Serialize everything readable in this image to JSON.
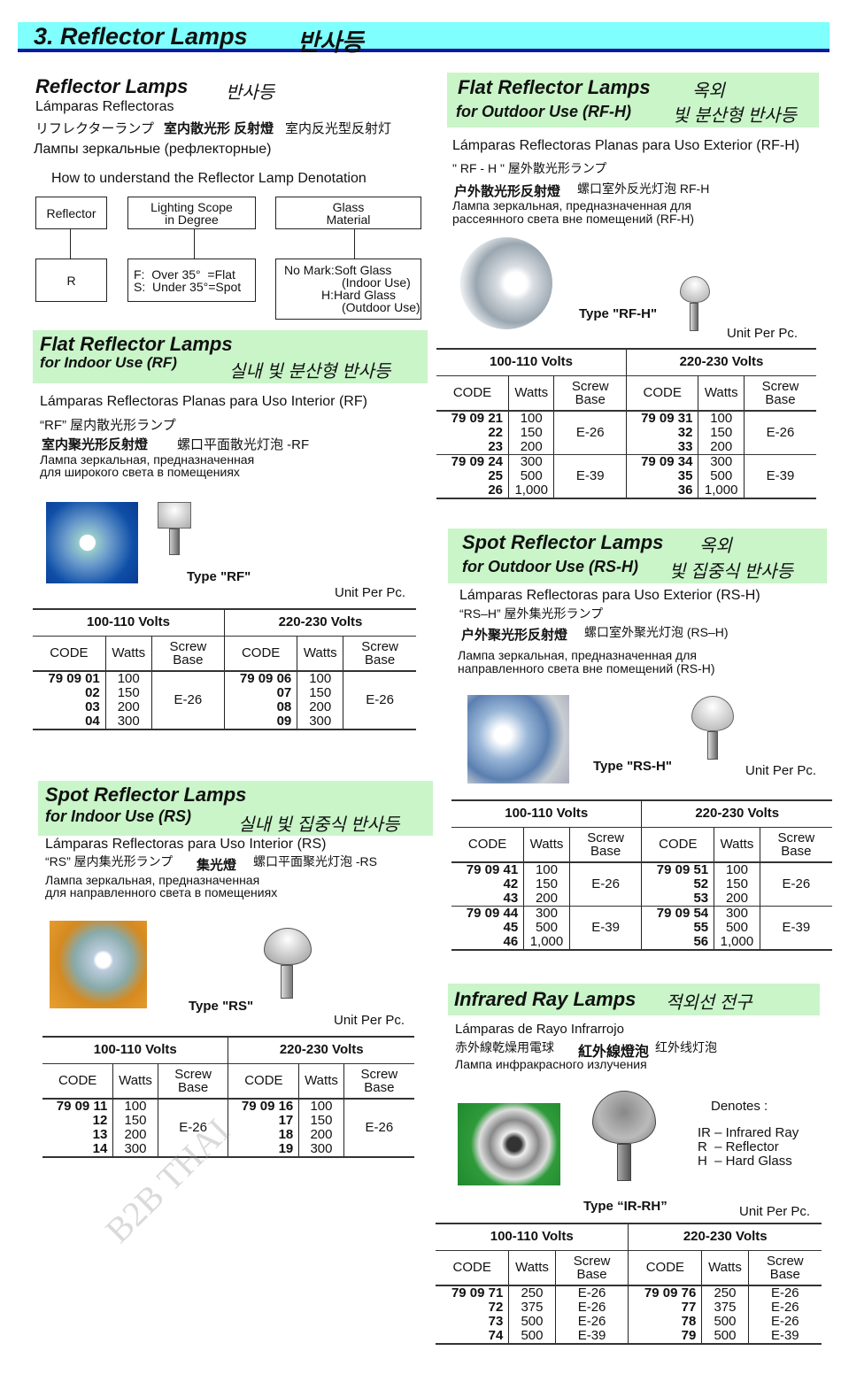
{
  "header": {
    "title": "3. Reflector Lamps",
    "title_kr": "반사등"
  },
  "intro": {
    "title": "Reflector Lamps",
    "title_kr": "반사등",
    "es": "Lámparas Reflectoras",
    "jp": "リフレクターランプ",
    "zh_bold": "室内散光形 反射燈",
    "zh": "室内反光型反射灯",
    "ru": "Лампы зеркальные (рефлекторные)",
    "denotation_title": "How to understand the Reflector Lamp Denotation",
    "boxes": {
      "reflector": "Reflector",
      "scope_1": "Lighting Scope",
      "scope_2": "in Degree",
      "glass_1": "Glass",
      "glass_2": "Material",
      "r": "R",
      "f": "F:  Over 35°  =Flat",
      "s": "S:  Under 35°=Spot",
      "nomark": "No Mark:Soft Glass",
      "indoor": "(Indoor Use)",
      "hard": "H:Hard Glass",
      "outdoor": "(Outdoor Use)"
    }
  },
  "rf": {
    "title_1": "Flat Reflector Lamps",
    "title_2": "for Indoor Use (RF)",
    "kr": "실내 빛 분산형 반사등",
    "es": "Lámparas Reflectoras  Planas para Uso Interior (RF)",
    "jp": "“RF” 屋内散光形ランプ",
    "zh_bold": "室内聚光形反射燈",
    "zh": "螺口平面散光灯泡 -RF",
    "ru_1": "Лампа зеркальная, предназначенная",
    "ru_2": "для широкого света в помещениях",
    "type": "Type \"RF\"",
    "unit": "Unit Per Pc."
  },
  "rs": {
    "title_1": "Spot Reflector Lamps",
    "title_2": "for Indoor Use (RS)",
    "kr": "실내 빛 집중식 반사등",
    "es": "Lámparas Reflectoras para Uso Interior (RS)",
    "jp": "“RS” 屋内集光形ランプ",
    "zh_bold": "集光燈",
    "zh": "螺口平面聚光灯泡 -RS",
    "ru_1": "Лампа зеркальная, предназначенная",
    "ru_2": "для направленного света в помещениях",
    "type": "Type \"RS\"",
    "unit": "Unit Per Pc."
  },
  "rfh": {
    "title_1": "Flat Reflector Lamps",
    "kr_1": "옥외",
    "title_2": "for Outdoor Use (RF-H)",
    "kr_2": "빛 분산형 반사등",
    "es": "Lámparas Reflectoras Planas para Uso Exterior (RF-H)",
    "jp": "\"  RF - H  \" 屋外散光形ランプ",
    "zh_bold": "户外散光形反射燈",
    "zh": "螺口室外反光灯泡 RF-H",
    "ru_1": "Лампа зеркальная, предназначенная для",
    "ru_2": "рассеянного света вне помещений (RF-H)",
    "type": "Type \"RF-H\"",
    "unit": "Unit Per Pc."
  },
  "rsh": {
    "title_1": "Spot Reflector Lamps",
    "kr_1": "옥외",
    "title_2": "for Outdoor Use (RS-H)",
    "kr_2": "빛 집중식 반사등",
    "es": "Lámparas Reflectoras para Uso Exterior (RS-H)",
    "jp": "“RS–H” 屋外集光形ランプ",
    "zh_bold": "户外聚光形反射燈",
    "zh": "螺口室外聚光灯泡 (RS–H)",
    "ru_1": "Лампа зеркальная, предназначенная для",
    "ru_2": "направленного света вне помещений (RS-H)",
    "type": "Type \"RS-H\"",
    "unit": "Unit Per Pc."
  },
  "ir": {
    "title": "Infrared Ray Lamps",
    "kr": "적외선 전구",
    "es": "Lámparas de Rayo Infrarrojo",
    "jp": "赤外線乾燥用電球",
    "zh_bold": "紅外線燈泡",
    "zh": "红外线灯泡",
    "ru": "Лампа инфракрасного излучения",
    "denotes": "Denotes :",
    "d1": "IR – Infrared Ray",
    "d2": "R  – Reflector",
    "d3": "H  – Hard Glass",
    "type": "Type “IR-RH”",
    "unit": "Unit Per Pc."
  },
  "tables": {
    "rfh": {
      "volts": [
        "100-110 Volts",
        "220-230 Volts"
      ],
      "cols": [
        "CODE",
        "Watts",
        "Screw|Base"
      ],
      "sides": [
        [
          {
            "codes": [
              "79 09 21",
              "22",
              "23"
            ],
            "watts": [
              "100",
              "150",
              "200"
            ],
            "base": [
              "E-26"
            ]
          },
          {
            "codes": [
              "79 09 24",
              "25",
              "26"
            ],
            "watts": [
              "300",
              "500",
              "1,000"
            ],
            "base": [
              "E-39"
            ]
          }
        ],
        [
          {
            "codes": [
              "79 09 31",
              "32",
              "33"
            ],
            "watts": [
              "100",
              "150",
              "200"
            ],
            "base": [
              "E-26"
            ]
          },
          {
            "codes": [
              "79 09 34",
              "35",
              "36"
            ],
            "watts": [
              "300",
              "500",
              "1,000"
            ],
            "base": [
              "E-39"
            ]
          }
        ]
      ]
    },
    "rf": {
      "volts": [
        "100-110 Volts",
        "220-230 Volts"
      ],
      "cols": [
        "CODE",
        "Watts",
        "Screw|Base"
      ],
      "sides": [
        [
          {
            "codes": [
              "79 09 01",
              "02",
              "03",
              "04"
            ],
            "watts": [
              "100",
              "150",
              "200",
              "300"
            ],
            "base": [
              "E-26"
            ]
          }
        ],
        [
          {
            "codes": [
              "79 09 06",
              "07",
              "08",
              "09"
            ],
            "watts": [
              "100",
              "150",
              "200",
              "300"
            ],
            "base": [
              "E-26"
            ]
          }
        ]
      ]
    },
    "rs": {
      "volts": [
        "100-110 Volts",
        "220-230 Volts"
      ],
      "cols": [
        "CODE",
        "Watts",
        "Screw|Base"
      ],
      "sides": [
        [
          {
            "codes": [
              "79 09 11",
              "12",
              "13",
              "14"
            ],
            "watts": [
              "100",
              "150",
              "200",
              "300"
            ],
            "base": [
              "E-26"
            ]
          }
        ],
        [
          {
            "codes": [
              "79 09 16",
              "17",
              "18",
              "19"
            ],
            "watts": [
              "100",
              "150",
              "200",
              "300"
            ],
            "base": [
              "E-26"
            ]
          }
        ]
      ]
    },
    "rsh": {
      "volts": [
        "100-110 Volts",
        "220-230 Volts"
      ],
      "cols": [
        "CODE",
        "Watts",
        "Screw|Base"
      ],
      "sides": [
        [
          {
            "codes": [
              "79 09 41",
              "42",
              "43"
            ],
            "watts": [
              "100",
              "150",
              "200"
            ],
            "base": [
              "E-26"
            ]
          },
          {
            "codes": [
              "79 09 44",
              "45",
              "46"
            ],
            "watts": [
              "300",
              "500",
              "1,000"
            ],
            "base": [
              "E-39"
            ]
          }
        ],
        [
          {
            "codes": [
              "79 09 51",
              "52",
              "53"
            ],
            "watts": [
              "100",
              "150",
              "200"
            ],
            "base": [
              "E-26"
            ]
          },
          {
            "codes": [
              "79 09 54",
              "55",
              "56"
            ],
            "watts": [
              "300",
              "500",
              "1,000"
            ],
            "base": [
              "E-39"
            ]
          }
        ]
      ]
    },
    "ir": {
      "volts": [
        "100-110 Volts",
        "220-230 Volts"
      ],
      "cols": [
        "CODE",
        "Watts",
        "Screw|Base"
      ],
      "sides": [
        [
          {
            "codes": [
              "79 09 71",
              "72",
              "73",
              "74"
            ],
            "watts": [
              "250",
              "375",
              "500",
              "500"
            ],
            "base": [
              "E-26",
              "E-26",
              "E-26",
              "E-39"
            ]
          }
        ],
        [
          {
            "codes": [
              "79 09 76",
              "77",
              "78",
              "79"
            ],
            "watts": [
              "250",
              "375",
              "500",
              "500"
            ],
            "base": [
              "E-26",
              "E-26",
              "E-26",
              "E-39"
            ]
          }
        ]
      ]
    }
  },
  "watermark": "B2B THAI",
  "colors": {
    "title_bar": "#80ffff",
    "title_rule": "#0a1aa0",
    "section_header": "#c9f5c9"
  }
}
